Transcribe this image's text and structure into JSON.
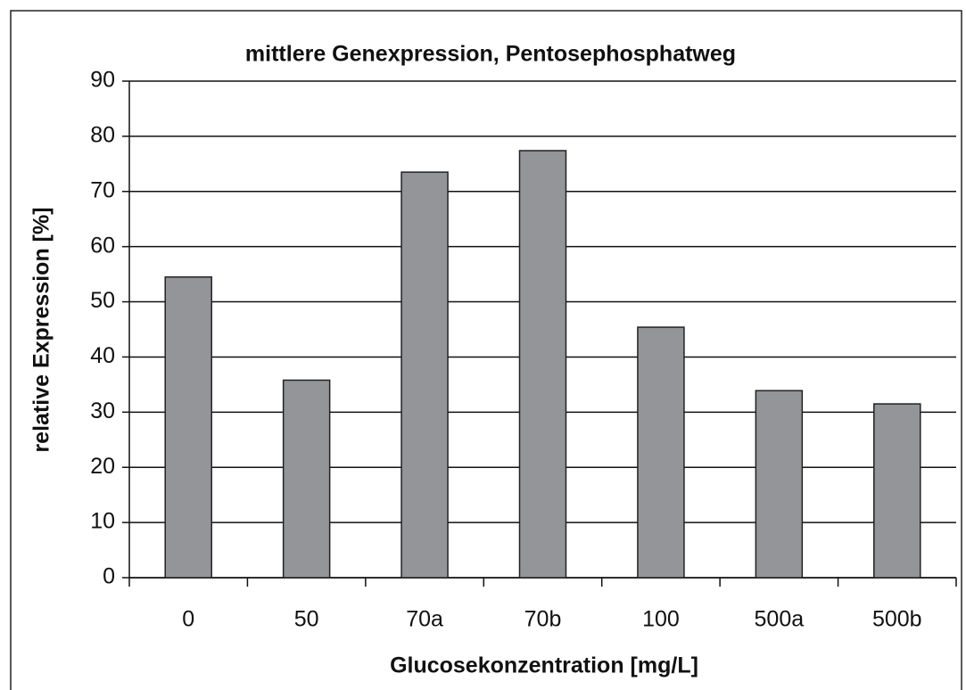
{
  "chart_data": {
    "type": "bar",
    "title": "mittlere Genexpression, Pentosephosphatweg",
    "x_label": "Glucosekonzentration [mg/L]",
    "y_label": "relative Expression [%]",
    "categories": [
      "0",
      "50",
      "70a",
      "70b",
      "100",
      "500a",
      "500b"
    ],
    "values": [
      54.5,
      35.8,
      73.5,
      77.4,
      45.4,
      33.9,
      31.5
    ],
    "color": "#939598",
    "ylim": [
      0,
      90
    ],
    "yticks": [
      0,
      10,
      20,
      30,
      40,
      50,
      60,
      70,
      80,
      90
    ],
    "grid": true
  }
}
